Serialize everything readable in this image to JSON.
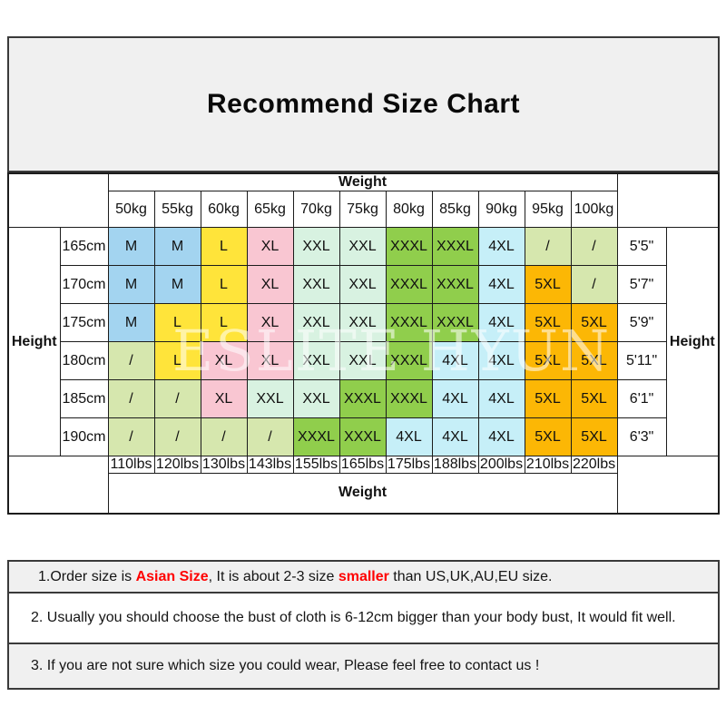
{
  "title": "Recommend Size Chart",
  "watermark": "ESLITE HYUN",
  "labels": {
    "weight_top": "Weight",
    "weight_bottom": "Weight",
    "height_left": "Height",
    "height_right": "Height"
  },
  "chart_data": {
    "type": "table",
    "title": "Recommend Size Chart",
    "columns_weight_kg": [
      "50kg",
      "55kg",
      "60kg",
      "65kg",
      "70kg",
      "75kg",
      "80kg",
      "85kg",
      "90kg",
      "95kg",
      "100kg"
    ],
    "columns_weight_lbs": [
      "110lbs",
      "120lbs",
      "130lbs",
      "143lbs",
      "155lbs",
      "165lbs",
      "175lbs",
      "188lbs",
      "200lbs",
      "210lbs",
      "220lbs"
    ],
    "rows_height_cm": [
      "165cm",
      "170cm",
      "175cm",
      "180cm",
      "185cm",
      "190cm"
    ],
    "rows_height_ft": [
      "5'5\"",
      "5'7\"",
      "5'9\"",
      "5'11\"",
      "6'1\"",
      "6'3\""
    ],
    "sizes": [
      [
        "M",
        "M",
        "L",
        "XL",
        "XXL",
        "XXL",
        "XXXL",
        "XXXL",
        "4XL",
        "/",
        "/"
      ],
      [
        "M",
        "M",
        "L",
        "XL",
        "XXL",
        "XXL",
        "XXXL",
        "XXXL",
        "4XL",
        "5XL",
        "/"
      ],
      [
        "M",
        "L",
        "L",
        "XL",
        "XXL",
        "XXL",
        "XXXL",
        "XXXL",
        "4XL",
        "5XL",
        "5XL"
      ],
      [
        "/",
        "L",
        "XL",
        "XL",
        "XXL",
        "XXL",
        "XXXL",
        "4XL",
        "4XL",
        "5XL",
        "5XL"
      ],
      [
        "/",
        "/",
        "XL",
        "XXL",
        "XXL",
        "XXXL",
        "XXXL",
        "4XL",
        "4XL",
        "5XL",
        "5XL"
      ],
      [
        "/",
        "/",
        "/",
        "/",
        "XXXL",
        "XXXL",
        "4XL",
        "4XL",
        "4XL",
        "5XL",
        "5XL"
      ]
    ],
    "size_colors": {
      "M": "#a3d4f0",
      "L": "#ffe43a",
      "XL": "#f9c6d2",
      "XXL": "#d8f2e1",
      "XXXL": "#90ce4c",
      "4XL": "#c6eff8",
      "5XL": "#fcb705",
      "/": "#d6e7ae"
    }
  },
  "notes": [
    {
      "bg": "gray",
      "segments": [
        {
          "text": "1.Order size is ",
          "style": "normal"
        },
        {
          "text": "Asian Size",
          "style": "red"
        },
        {
          "text": ", It is about 2-3 size ",
          "style": "normal"
        },
        {
          "text": "smaller",
          "style": "red"
        },
        {
          "text": " than US,UK,AU,EU size.",
          "style": "normal"
        }
      ]
    },
    {
      "bg": "white",
      "segments": [
        {
          "text": "2. Usually you should choose the bust of cloth is 6-12cm bigger than your body bust, It would fit well.",
          "style": "normal"
        }
      ]
    },
    {
      "bg": "gray",
      "segments": [
        {
          "text": "3. If you are not sure which size you could wear, Please feel free to contact us !",
          "style": "normal"
        }
      ]
    }
  ],
  "colors": {
    "panel_bg": "#f0f0f0",
    "highlight_red": "#ff0000",
    "grid_line": "#1c1c1c",
    "box_border": "#3a3a3a",
    "watermark_white": "#ffffff"
  }
}
